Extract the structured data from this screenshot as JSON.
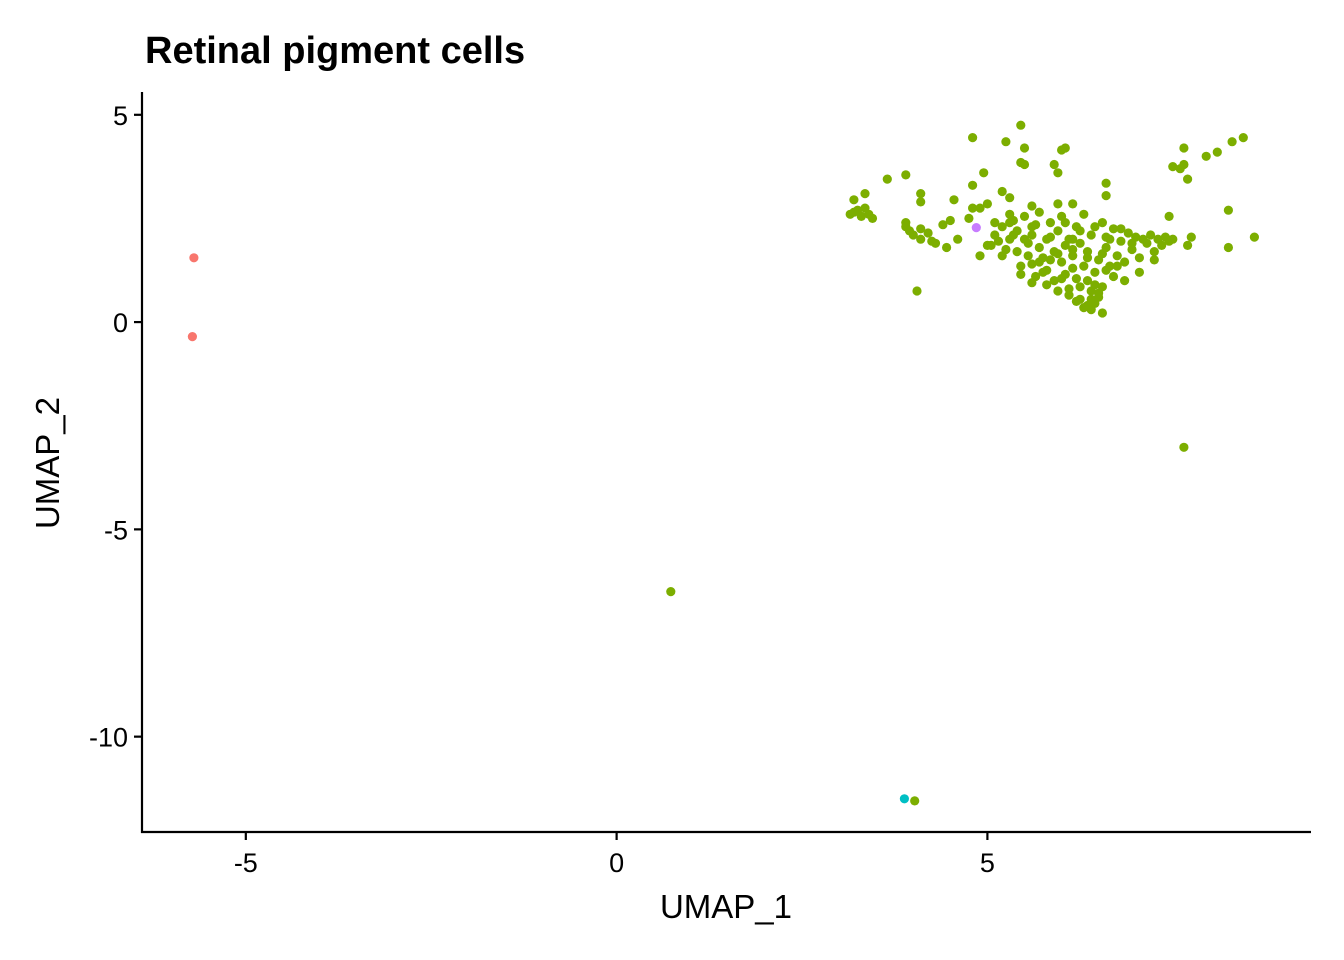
{
  "chart_data": {
    "type": "scatter",
    "title": "Retinal pigment cells",
    "xlabel": "UMAP_1",
    "ylabel": "UMAP_2",
    "xlim": [
      -6.4,
      9.35
    ],
    "ylim": [
      -12.3,
      5.55
    ],
    "xticks": [
      -5,
      0,
      5
    ],
    "xtick_labels": [
      "-5",
      "0",
      "5"
    ],
    "yticks": [
      5,
      0,
      -5,
      -10
    ],
    "ytick_labels": [
      "5",
      "0",
      "-5",
      "-10"
    ],
    "grid": false,
    "legend": "none",
    "series": [
      {
        "color": "#F8766D",
        "points": [
          [
            -5.7,
            1.55
          ],
          [
            -5.72,
            -0.35
          ]
        ]
      },
      {
        "color": "#7CAE00",
        "points": [
          [
            0.73,
            -6.5
          ],
          [
            4.02,
            -11.55
          ],
          [
            7.65,
            -3.02
          ],
          [
            4.05,
            0.75
          ],
          [
            5.45,
            4.75
          ],
          [
            4.8,
            4.45
          ],
          [
            5.25,
            4.35
          ],
          [
            5.5,
            4.2
          ],
          [
            6.05,
            4.2
          ],
          [
            6.0,
            4.15
          ],
          [
            5.45,
            3.85
          ],
          [
            5.9,
            3.8
          ],
          [
            5.5,
            3.8
          ],
          [
            4.95,
            3.6
          ],
          [
            5.95,
            3.6
          ],
          [
            3.9,
            3.55
          ],
          [
            3.65,
            3.45
          ],
          [
            4.8,
            3.3
          ],
          [
            5.2,
            3.15
          ],
          [
            4.1,
            3.1
          ],
          [
            3.35,
            3.1
          ],
          [
            3.2,
            2.95
          ],
          [
            4.55,
            2.95
          ],
          [
            4.1,
            2.9
          ],
          [
            5.3,
            3.0
          ],
          [
            5.6,
            2.8
          ],
          [
            5.0,
            2.85
          ],
          [
            4.9,
            2.75
          ],
          [
            6.6,
            3.35
          ],
          [
            6.6,
            3.05
          ],
          [
            6.15,
            2.85
          ],
          [
            3.2,
            2.65
          ],
          [
            3.25,
            2.7
          ],
          [
            3.3,
            2.55
          ],
          [
            3.4,
            2.6
          ],
          [
            3.45,
            2.5
          ],
          [
            3.35,
            2.75
          ],
          [
            3.15,
            2.6
          ],
          [
            3.9,
            2.4
          ],
          [
            3.9,
            2.3
          ],
          [
            3.95,
            2.2
          ],
          [
            4.0,
            2.1
          ],
          [
            4.1,
            2.0
          ],
          [
            4.1,
            2.25
          ],
          [
            4.2,
            2.15
          ],
          [
            4.25,
            1.95
          ],
          [
            4.3,
            1.9
          ],
          [
            4.4,
            2.35
          ],
          [
            4.45,
            1.8
          ],
          [
            4.5,
            2.45
          ],
          [
            4.6,
            2.0
          ],
          [
            4.75,
            2.5
          ],
          [
            4.8,
            2.75
          ],
          [
            4.9,
            1.6
          ],
          [
            5.0,
            1.85
          ],
          [
            5.05,
            1.85
          ],
          [
            5.1,
            2.4
          ],
          [
            5.15,
            1.95
          ],
          [
            5.2,
            2.3
          ],
          [
            5.2,
            1.6
          ],
          [
            5.3,
            2.0
          ],
          [
            5.3,
            2.6
          ],
          [
            5.35,
            2.45
          ],
          [
            5.4,
            1.7
          ],
          [
            5.4,
            2.2
          ],
          [
            5.45,
            1.35
          ],
          [
            5.5,
            2.0
          ],
          [
            5.5,
            2.55
          ],
          [
            5.55,
            1.9
          ],
          [
            5.6,
            1.4
          ],
          [
            5.6,
            2.3
          ],
          [
            5.65,
            1.1
          ],
          [
            5.7,
            1.8
          ],
          [
            5.7,
            2.65
          ],
          [
            5.75,
            1.55
          ],
          [
            5.8,
            2.0
          ],
          [
            5.8,
            1.25
          ],
          [
            5.85,
            2.4
          ],
          [
            5.9,
            1.7
          ],
          [
            5.9,
            1.0
          ],
          [
            5.95,
            2.2
          ],
          [
            6.0,
            1.45
          ],
          [
            6.0,
            2.55
          ],
          [
            6.05,
            1.85
          ],
          [
            6.05,
            1.15
          ],
          [
            6.1,
            2.0
          ],
          [
            6.1,
            0.8
          ],
          [
            6.15,
            1.6
          ],
          [
            6.2,
            2.3
          ],
          [
            6.2,
            1.05
          ],
          [
            6.25,
            0.55
          ],
          [
            6.25,
            1.9
          ],
          [
            6.3,
            1.35
          ],
          [
            6.3,
            2.6
          ],
          [
            6.35,
            0.4
          ],
          [
            6.35,
            1.7
          ],
          [
            6.4,
            0.75
          ],
          [
            6.4,
            2.1
          ],
          [
            6.45,
            1.2
          ],
          [
            6.45,
            0.9
          ],
          [
            6.5,
            0.6
          ],
          [
            6.5,
            1.5
          ],
          [
            6.55,
            2.4
          ],
          [
            6.55,
            0.85
          ],
          [
            6.6,
            1.8
          ],
          [
            6.6,
            2.05
          ],
          [
            6.65,
            1.35
          ],
          [
            6.7,
            2.25
          ],
          [
            6.75,
            1.6
          ],
          [
            6.8,
            1.95
          ],
          [
            6.85,
            1.45
          ],
          [
            6.9,
            2.15
          ],
          [
            6.95,
            1.75
          ],
          [
            7.0,
            2.05
          ],
          [
            7.05,
            1.55
          ],
          [
            7.1,
            2.0
          ],
          [
            7.15,
            1.9
          ],
          [
            7.2,
            2.1
          ],
          [
            7.25,
            1.7
          ],
          [
            7.3,
            2.0
          ],
          [
            7.35,
            1.85
          ],
          [
            7.4,
            2.05
          ],
          [
            7.45,
            1.95
          ],
          [
            7.5,
            2.0
          ],
          [
            6.4,
            0.3
          ],
          [
            6.3,
            0.35
          ],
          [
            6.55,
            0.22
          ],
          [
            6.2,
            0.5
          ],
          [
            6.45,
            0.45
          ],
          [
            6.1,
            0.65
          ],
          [
            5.95,
            0.75
          ],
          [
            6.35,
            1.0
          ],
          [
            6.15,
            1.3
          ],
          [
            5.85,
            1.5
          ],
          [
            5.75,
            1.2
          ],
          [
            5.55,
            1.6
          ],
          [
            5.25,
            1.75
          ],
          [
            5.1,
            2.1
          ],
          [
            5.95,
            2.85
          ],
          [
            5.35,
            2.1
          ],
          [
            5.6,
            2.1
          ],
          [
            5.85,
            2.05
          ],
          [
            6.05,
            2.4
          ],
          [
            6.25,
            2.2
          ],
          [
            6.45,
            2.3
          ],
          [
            6.65,
            2.0
          ],
          [
            6.8,
            2.25
          ],
          [
            6.95,
            1.9
          ],
          [
            7.25,
            1.5
          ],
          [
            7.05,
            1.2
          ],
          [
            6.85,
            1.0
          ],
          [
            6.7,
            1.1
          ],
          [
            6.6,
            1.25
          ],
          [
            6.35,
            1.55
          ],
          [
            6.15,
            1.75
          ],
          [
            5.95,
            1.65
          ],
          [
            5.7,
            1.45
          ],
          [
            5.45,
            1.15
          ],
          [
            5.6,
            0.95
          ],
          [
            5.8,
            0.9
          ],
          [
            6.0,
            1.05
          ],
          [
            6.25,
            0.85
          ],
          [
            6.5,
            0.7
          ],
          [
            6.4,
            0.55
          ],
          [
            6.55,
            1.65
          ],
          [
            6.75,
            1.35
          ],
          [
            7.6,
            3.7
          ],
          [
            7.5,
            3.75
          ],
          [
            7.65,
            3.8
          ],
          [
            7.7,
            3.45
          ],
          [
            7.65,
            4.2
          ],
          [
            7.95,
            4.0
          ],
          [
            8.1,
            4.1
          ],
          [
            8.3,
            4.35
          ],
          [
            8.45,
            4.45
          ],
          [
            8.25,
            2.7
          ],
          [
            8.25,
            1.8
          ],
          [
            8.6,
            2.05
          ],
          [
            7.75,
            2.05
          ],
          [
            7.7,
            1.85
          ],
          [
            7.45,
            2.55
          ],
          [
            6.15,
            2.0
          ],
          [
            5.65,
            2.35
          ],
          [
            5.3,
            2.4
          ]
        ]
      },
      {
        "color": "#00BFC4",
        "points": [
          [
            3.88,
            -11.5
          ]
        ]
      },
      {
        "color": "#C77CFF",
        "points": [
          [
            4.85,
            2.28
          ]
        ]
      }
    ]
  }
}
